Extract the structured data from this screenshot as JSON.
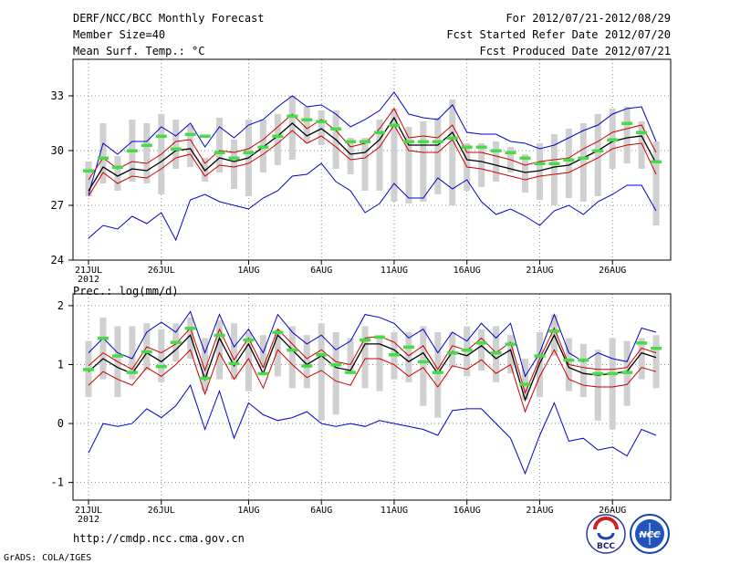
{
  "header": {
    "title": "DERF/NCC/BCC Monthly Forecast",
    "member_size": "Member Size=40",
    "variable": "Mean Surf. Temp.: °C",
    "period": "For 2012/07/21-2012/08/29",
    "start_date": "Fcst Started Refer Date 2012/07/20",
    "produced_date": "Fcst Produced Date 2012/07/21"
  },
  "footer": {
    "url": "http://cmdp.ncc.cma.gov.cn",
    "grads": "GrADS: COLA/IGES",
    "logo_bcc": "BCC",
    "logo_ncc": "NCC"
  },
  "colors": {
    "max": "#0000cc",
    "band": "#cc0000",
    "mean": "#000000",
    "obs": "#44dd44",
    "box": "#d0d0d0",
    "grid": "#888888"
  },
  "chart_data": [
    {
      "type": "line",
      "title": "Mean Surf. Temp.: °C",
      "ylim": [
        24,
        35
      ],
      "yticks": [
        24,
        27,
        30,
        33
      ],
      "xticks": [
        "21JUL",
        "26JUL",
        "1AUG",
        "6AUG",
        "11AUG",
        "16AUG",
        "21AUG",
        "26AUG"
      ],
      "xtick_days": [
        1,
        6,
        12,
        17,
        22,
        27,
        32,
        37
      ],
      "year_label": "2012",
      "days": 40,
      "series": [
        {
          "name": "max",
          "values": [
            27.6,
            30.4,
            29.8,
            30.5,
            30.5,
            31.3,
            30.8,
            31.5,
            30.2,
            31.3,
            30.7,
            31.4,
            31.7,
            32.4,
            33.0,
            32.4,
            32.5,
            32.0,
            31.3,
            31.7,
            32.2,
            33.2,
            32.0,
            31.8,
            31.7,
            32.5,
            31.0,
            30.9,
            30.9,
            30.5,
            30.4,
            30.1,
            30.3,
            30.7,
            31.1,
            31.4,
            32.0,
            32.3,
            32.4,
            30.5
          ]
        },
        {
          "name": "upper",
          "values": [
            28.4,
            29.6,
            29.0,
            29.4,
            29.3,
            29.8,
            30.5,
            30.6,
            29.3,
            30.0,
            29.9,
            30.1,
            30.6,
            31.3,
            32.0,
            31.2,
            31.7,
            31.1,
            30.2,
            30.4,
            31.2,
            32.3,
            30.7,
            30.8,
            30.7,
            31.4,
            29.9,
            29.9,
            29.7,
            29.5,
            29.2,
            29.4,
            29.5,
            29.6,
            30.1,
            30.5,
            31.0,
            31.2,
            31.4,
            29.9
          ]
        },
        {
          "name": "mean",
          "values": [
            27.8,
            29.1,
            28.6,
            29.0,
            28.9,
            29.4,
            30.0,
            30.1,
            28.9,
            29.6,
            29.4,
            29.6,
            30.2,
            30.8,
            31.5,
            30.8,
            31.2,
            30.6,
            29.8,
            29.9,
            30.6,
            31.8,
            30.3,
            30.3,
            30.3,
            31.0,
            29.5,
            29.4,
            29.2,
            29.0,
            28.8,
            28.9,
            29.1,
            29.2,
            29.6,
            30.0,
            30.5,
            30.7,
            30.8,
            29.3
          ]
        },
        {
          "name": "lower",
          "values": [
            27.5,
            28.8,
            28.2,
            28.6,
            28.5,
            29.0,
            29.6,
            29.8,
            28.6,
            29.2,
            29.1,
            29.3,
            29.8,
            30.4,
            31.1,
            30.4,
            30.8,
            30.2,
            29.5,
            29.6,
            30.2,
            31.4,
            30.0,
            29.9,
            29.9,
            30.6,
            29.1,
            29.0,
            28.8,
            28.6,
            28.4,
            28.6,
            28.7,
            28.8,
            29.2,
            29.6,
            30.1,
            30.3,
            30.4,
            28.7
          ]
        },
        {
          "name": "min",
          "values": [
            25.2,
            25.9,
            25.7,
            26.4,
            26.0,
            26.6,
            25.1,
            27.3,
            27.6,
            27.2,
            27.0,
            26.8,
            27.4,
            27.8,
            28.6,
            28.7,
            29.3,
            28.3,
            27.8,
            26.6,
            27.1,
            28.2,
            27.4,
            27.4,
            28.5,
            27.9,
            28.4,
            27.2,
            26.5,
            26.8,
            26.4,
            25.9,
            26.7,
            27.0,
            26.5,
            27.2,
            27.6,
            28.1,
            28.1,
            26.7
          ]
        },
        {
          "name": "obs",
          "values": [
            28.9,
            29.6,
            29.1,
            30.0,
            30.3,
            30.8,
            30.1,
            30.9,
            30.8,
            29.9,
            29.6,
            29.9,
            30.2,
            30.8,
            31.9,
            31.7,
            31.6,
            31.2,
            30.5,
            30.5,
            31.0,
            31.4,
            30.5,
            30.5,
            30.5,
            30.7,
            30.2,
            30.2,
            30.0,
            29.9,
            29.6,
            29.3,
            29.3,
            29.5,
            29.6,
            30.0,
            30.6,
            31.5,
            31.0,
            29.4
          ]
        },
        {
          "name": "box_low",
          "values": [
            27.5,
            28.2,
            27.8,
            28.3,
            28.2,
            27.6,
            29.0,
            29.1,
            28.3,
            28.8,
            27.9,
            27.5,
            28.8,
            29.2,
            29.5,
            30.4,
            30.3,
            29.0,
            28.7,
            27.8,
            27.8,
            27.2,
            27.1,
            27.2,
            27.6,
            27.0,
            27.8,
            28.0,
            28.3,
            28.8,
            27.7,
            27.3,
            27.0,
            27.4,
            27.2,
            27.5,
            29.0,
            29.3,
            29.0,
            25.9
          ]
        },
        {
          "name": "box_high",
          "values": [
            29.4,
            31.5,
            29.7,
            31.7,
            31.5,
            32.0,
            31.7,
            31.4,
            29.6,
            31.8,
            30.6,
            31.7,
            31.7,
            32.0,
            33.0,
            32.4,
            32.2,
            32.2,
            30.7,
            30.7,
            31.7,
            32.3,
            31.3,
            31.6,
            31.8,
            32.8,
            30.4,
            30.4,
            30.5,
            30.2,
            29.8,
            30.4,
            30.9,
            31.2,
            31.5,
            32.0,
            32.3,
            32.4,
            31.6,
            30.5
          ]
        }
      ]
    },
    {
      "type": "line",
      "title": "Prec.: log(mm/d)",
      "ylim": [
        -1.3,
        2.2
      ],
      "yticks": [
        -1,
        0,
        1,
        2
      ],
      "xticks": [
        "21JUL",
        "26JUL",
        "1AUG",
        "6AUG",
        "11AUG",
        "16AUG",
        "21AUG",
        "26AUG"
      ],
      "xtick_days": [
        1,
        6,
        12,
        17,
        22,
        27,
        32,
        37
      ],
      "year_label": "2012",
      "days": 40,
      "series": [
        {
          "name": "max",
          "values": [
            1.2,
            1.45,
            1.2,
            1.1,
            1.55,
            1.72,
            1.55,
            1.9,
            1.2,
            1.85,
            1.3,
            1.6,
            1.2,
            1.85,
            1.55,
            1.35,
            1.5,
            1.25,
            1.4,
            1.85,
            1.8,
            1.7,
            1.45,
            1.6,
            1.2,
            1.55,
            1.4,
            1.7,
            1.45,
            1.7,
            0.8,
            1.2,
            1.85,
            1.2,
            1.05,
            1.2,
            1.1,
            1.05,
            1.62,
            1.55
          ]
        },
        {
          "name": "upper",
          "values": [
            0.98,
            1.2,
            1.05,
            0.92,
            1.3,
            1.2,
            1.35,
            1.62,
            0.9,
            1.6,
            1.08,
            1.45,
            0.95,
            1.6,
            1.35,
            1.1,
            1.25,
            1.05,
            1.0,
            1.45,
            1.48,
            1.38,
            1.15,
            1.32,
            0.92,
            1.32,
            1.24,
            1.45,
            1.2,
            1.38,
            0.52,
            1.1,
            1.62,
            1.0,
            0.95,
            0.92,
            0.92,
            0.95,
            1.28,
            1.2
          ]
        },
        {
          "name": "mean",
          "values": [
            0.88,
            1.1,
            0.95,
            0.85,
            1.2,
            1.05,
            1.25,
            1.5,
            0.75,
            1.45,
            0.98,
            1.35,
            0.85,
            1.5,
            1.25,
            1.0,
            1.15,
            0.95,
            0.9,
            1.35,
            1.35,
            1.25,
            1.05,
            1.2,
            0.85,
            1.22,
            1.15,
            1.32,
            1.1,
            1.25,
            0.4,
            1.02,
            1.5,
            0.95,
            0.85,
            0.82,
            0.85,
            0.88,
            1.2,
            1.12
          ]
        },
        {
          "name": "lower",
          "values": [
            0.65,
            0.88,
            0.75,
            0.65,
            0.95,
            0.8,
            1.0,
            1.25,
            0.5,
            1.2,
            0.75,
            1.1,
            0.6,
            1.25,
            1.0,
            0.78,
            0.9,
            0.72,
            0.65,
            1.1,
            1.1,
            1.0,
            0.8,
            0.95,
            0.62,
            0.98,
            0.92,
            1.08,
            0.85,
            1.0,
            0.2,
            0.8,
            1.25,
            0.75,
            0.65,
            0.62,
            0.62,
            0.66,
            0.95,
            0.88
          ]
        },
        {
          "name": "min",
          "values": [
            -0.5,
            0.0,
            -0.05,
            0.0,
            0.25,
            0.1,
            0.3,
            0.65,
            -0.1,
            0.55,
            -0.25,
            0.35,
            0.15,
            0.05,
            0.1,
            0.2,
            0.0,
            -0.05,
            0.0,
            -0.05,
            0.05,
            0.0,
            -0.05,
            -0.1,
            -0.2,
            0.22,
            0.25,
            0.25,
            0.0,
            -0.25,
            -0.85,
            -0.2,
            0.35,
            -0.3,
            -0.25,
            -0.45,
            -0.4,
            -0.55,
            -0.1,
            -0.2
          ]
        },
        {
          "name": "obs",
          "values": [
            0.92,
            1.45,
            1.15,
            0.87,
            1.22,
            0.97,
            1.38,
            1.62,
            0.77,
            1.5,
            1.02,
            1.42,
            0.85,
            1.55,
            1.25,
            0.98,
            1.17,
            1.0,
            0.87,
            1.42,
            1.47,
            1.17,
            1.3,
            1.05,
            0.87,
            1.2,
            1.25,
            1.37,
            1.2,
            1.35,
            0.67,
            1.15,
            1.57,
            1.08,
            1.08,
            0.85,
            0.85,
            0.87,
            1.37,
            1.28
          ]
        },
        {
          "name": "box_low",
          "values": [
            0.45,
            0.75,
            0.45,
            0.75,
            0.9,
            0.7,
            1.05,
            1.1,
            0.55,
            0.75,
            0.75,
            0.55,
            0.95,
            0.8,
            0.6,
            0.6,
            0.05,
            0.15,
            0.85,
            0.6,
            0.55,
            0.75,
            0.7,
            0.3,
            0.1,
            0.95,
            0.8,
            0.9,
            0.7,
            0.85,
            0.4,
            0.45,
            1.15,
            0.55,
            0.45,
            0.05,
            -0.1,
            0.3,
            0.75,
            0.6
          ]
        },
        {
          "name": "box_high",
          "values": [
            1.4,
            1.8,
            1.65,
            1.65,
            1.7,
            1.6,
            1.7,
            1.8,
            1.45,
            1.75,
            1.7,
            1.55,
            1.5,
            1.6,
            1.65,
            1.5,
            1.7,
            1.55,
            1.45,
            1.65,
            1.5,
            1.55,
            1.55,
            1.65,
            1.55,
            1.55,
            1.65,
            1.6,
            1.65,
            1.5,
            1.1,
            1.55,
            1.85,
            1.45,
            1.35,
            1.25,
            1.45,
            1.4,
            1.45,
            1.5
          ]
        }
      ]
    }
  ]
}
